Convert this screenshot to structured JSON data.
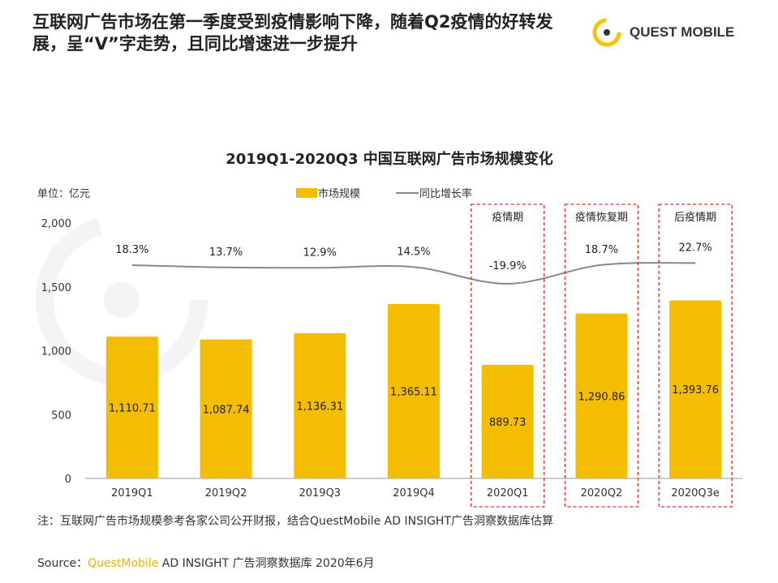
{
  "header": {
    "title": "互联网广告市场在第一季度受到疫情影响下降，随着Q2疫情的好转发展，呈“V”字走势，且同比增速进一步提升",
    "logo_text": "QUEST MOBILE"
  },
  "watermark": "QUESTMOBILE",
  "chart_data": {
    "type": "bar",
    "title": "2019Q1-2020Q3 中国互联网广告市场规模变化",
    "unit_label": "单位：亿元",
    "categories": [
      "2019Q1",
      "2019Q2",
      "2019Q3",
      "2019Q4",
      "2020Q1",
      "2020Q2",
      "2020Q3e"
    ],
    "series": [
      {
        "name": "市场规模",
        "type": "bar",
        "values": [
          1110.71,
          1087.74,
          1136.31,
          1365.11,
          889.73,
          1290.86,
          1393.76
        ],
        "labels": [
          "1,110.71",
          "1,087.74",
          "1,136.31",
          "1,365.11",
          "889.73",
          "1,290.86",
          "1,393.76"
        ]
      },
      {
        "name": "同比增长率",
        "type": "line",
        "values": [
          18.3,
          13.7,
          12.9,
          14.5,
          -19.9,
          18.7,
          22.7
        ],
        "labels": [
          "18.3%",
          "13.7%",
          "12.9%",
          "14.5%",
          "-19.9%",
          "18.7%",
          "22.7%"
        ]
      }
    ],
    "ylim": [
      0,
      2000
    ],
    "yticks": [
      0,
      500,
      1000,
      1500,
      2000
    ],
    "ytick_labels": [
      "0",
      "500",
      "1,000",
      "1,500",
      "2,000"
    ],
    "legend_position": "top-center",
    "annotations": [
      {
        "label": "疫情期",
        "category": "2020Q1"
      },
      {
        "label": "疫情恢复期",
        "category": "2020Q2"
      },
      {
        "label": "后疫情期",
        "category": "2020Q3e"
      }
    ],
    "colors": {
      "bar": "#f5bd00",
      "line": "#888888",
      "box": "#d9312b"
    }
  },
  "footer": {
    "note": "注：互联网广告市场规模参考各家公司公开财报，结合QuestMobile AD INSIGHT广告洞察数据库估算",
    "source_prefix": "Source：",
    "source_brand": "QuestMobile",
    "source_rest": " AD INSIGHT 广告洞察数据库 2020年6月"
  }
}
